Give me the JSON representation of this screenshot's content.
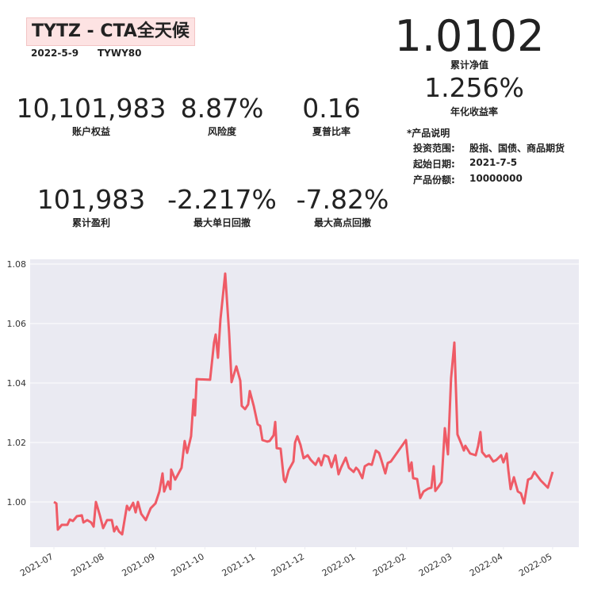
{
  "header": {
    "title": "TYTZ - CTA全天候",
    "date": "2022-5-9",
    "code": "TYWY80"
  },
  "nav": {
    "value": "1.0102",
    "label": "累计净值"
  },
  "annual": {
    "value": "1.256%",
    "label": "年化收益率"
  },
  "metrics": [
    {
      "value": "10,101,983",
      "label": "账户权益"
    },
    {
      "value": "8.87%",
      "label": "风险度"
    },
    {
      "value": "0.16",
      "label": "夏普比率"
    },
    {
      "value": "101,983",
      "label": "累计盈利"
    },
    {
      "value": "-2.217%",
      "label": "最大单日回撤"
    },
    {
      "value": "-7.82%",
      "label": "最大高点回撤"
    }
  ],
  "product": {
    "title": "*产品说明",
    "rows": [
      [
        "投资范围:",
        "股指、国债、商品期货"
      ],
      [
        "起始日期:",
        "2021-7-5"
      ],
      [
        "产品份额:",
        "10000000"
      ]
    ]
  },
  "chart_data": {
    "type": "line",
    "color": "#ef5b66",
    "grid": true,
    "x": [
      0,
      1.5,
      2.4,
      4.8,
      8.2,
      9.7,
      11.6,
      14,
      17,
      18,
      20.3,
      22.7,
      24.2,
      25.6,
      28,
      30,
      32.4,
      35.3,
      36.7,
      38.2,
      39.6,
      41.6,
      44.5,
      45.9,
      48.3,
      49.8,
      51.2,
      53.2,
      56,
      59,
      61.9,
      64.3,
      66.2,
      67.2,
      69.6,
      71,
      71.5,
      73.9,
      77.8,
      79.7,
      81.2,
      83.6,
      85.1,
      86,
      87,
      95.2,
      97.6,
      98.6,
      100,
      101.5,
      104.4,
      106.8,
      108.3,
      111.2,
      113.6,
      114.5,
      116.5,
      118.4,
      119.4,
      121.8,
      124.2,
      125.7,
      127.1,
      130,
      131.5,
      133.9,
      134.9,
      135.8,
      138.2,
      140.2,
      141.1,
      143.1,
      146,
      147,
      148.4,
      150.3,
      152.2,
      154.7,
      156.6,
      159.5,
      161.4,
      163,
      164.8,
      167.2,
      169.2,
      171.6,
      173.5,
      175,
      177.9,
      179.8,
      182.7,
      184.2,
      185.6,
      188,
      189.5,
      191.9,
      193.8,
      196.2,
      198.2,
      199.6,
      202,
      203.5,
      205.4,
      214.6,
      216.6,
      218,
      219,
      221.4,
      223.3,
      225.3,
      228.2,
      230.1,
      231.5,
      232.5,
      234.4,
      236.3,
      238.3,
      240.2,
      242.1,
      244.1,
      246,
      248.4,
      249.9,
      250.8,
      253.7,
      257.1,
      258.6,
      260,
      261,
      263.4,
      265.3,
      267.8,
      269.7,
      272.6,
      274,
      276,
      277,
      278.4,
      280.4,
      282.8,
      284.7,
      286.6,
      289,
      291,
      292.9,
      296.8,
      301.1,
      304
    ],
    "values": [
      1.0,
      0.9995,
      0.9907,
      0.9923,
      0.9923,
      0.9941,
      0.9936,
      0.9952,
      0.9955,
      0.9931,
      0.9939,
      0.9931,
      0.9917,
      1.0,
      0.9955,
      0.9912,
      0.9939,
      0.9939,
      0.9901,
      0.9917,
      0.9901,
      0.9891,
      0.9987,
      0.9973,
      0.9997,
      0.9965,
      1.0,
      0.996,
      0.9939,
      0.9979,
      0.9995,
      1.0035,
      1.0096,
      1.0035,
      1.0069,
      1.0043,
      1.0109,
      1.0075,
      1.0115,
      1.0205,
      1.0165,
      1.0221,
      1.0344,
      1.0291,
      1.0413,
      1.0411,
      1.0536,
      1.0563,
      1.0485,
      1.0613,
      1.0768,
      1.0568,
      1.0403,
      1.0456,
      1.0408,
      1.0323,
      1.0312,
      1.0328,
      1.0373,
      1.0323,
      1.0261,
      1.0256,
      1.0208,
      1.0203,
      1.0205,
      1.0224,
      1.0269,
      1.0181,
      1.0179,
      1.0075,
      1.0067,
      1.0107,
      1.0136,
      1.02,
      1.0221,
      1.0192,
      1.0147,
      1.0157,
      1.0141,
      1.0125,
      1.0147,
      1.0123,
      1.0157,
      1.0152,
      1.0117,
      1.0157,
      1.0093,
      1.0115,
      1.0149,
      1.0115,
      1.0101,
      1.0115,
      1.0107,
      1.008,
      1.012,
      1.0128,
      1.0125,
      1.0173,
      1.0165,
      1.0141,
      1.0096,
      1.0131,
      1.0136,
      1.0208,
      1.0104,
      1.0133,
      1.008,
      1.0077,
      1.0013,
      1.0035,
      1.0045,
      1.0048,
      1.012,
      1.0037,
      1.0051,
      1.0067,
      1.0248,
      1.016,
      1.0416,
      1.0536,
      1.0227,
      1.0195,
      1.0173,
      1.0189,
      1.0163,
      1.0157,
      1.0189,
      1.0235,
      1.0168,
      1.0152,
      1.0157,
      1.0136,
      1.0141,
      1.0157,
      1.0133,
      1.0163,
      1.0107,
      1.0043,
      1.0083,
      1.0035,
      1.0029,
      0.9995,
      1.0075,
      1.008,
      1.0101,
      1.0072,
      1.0048,
      1.0101
    ],
    "xlim": [
      -14.5,
      320
    ],
    "ylim": [
      0.9848,
      1.0816
    ],
    "xticks": [
      {
        "value": 0,
        "label": "2021-07"
      },
      {
        "value": 31,
        "label": "2021-08"
      },
      {
        "value": 62,
        "label": "2021-09"
      },
      {
        "value": 92,
        "label": "2021-10"
      },
      {
        "value": 123,
        "label": "2021-11"
      },
      {
        "value": 153,
        "label": "2021-12"
      },
      {
        "value": 184,
        "label": "2022-01"
      },
      {
        "value": 215,
        "label": "2022-02"
      },
      {
        "value": 243,
        "label": "2022-03"
      },
      {
        "value": 274,
        "label": "2022-04"
      },
      {
        "value": 304,
        "label": "2022-05"
      }
    ],
    "yticks": [
      {
        "value": 1,
        "label": "1.00"
      },
      {
        "value": 1.02,
        "label": "1.02"
      },
      {
        "value": 1.04,
        "label": "1.04"
      },
      {
        "value": 1.06,
        "label": "1.06"
      },
      {
        "value": 1.08,
        "label": "1.08"
      }
    ]
  }
}
